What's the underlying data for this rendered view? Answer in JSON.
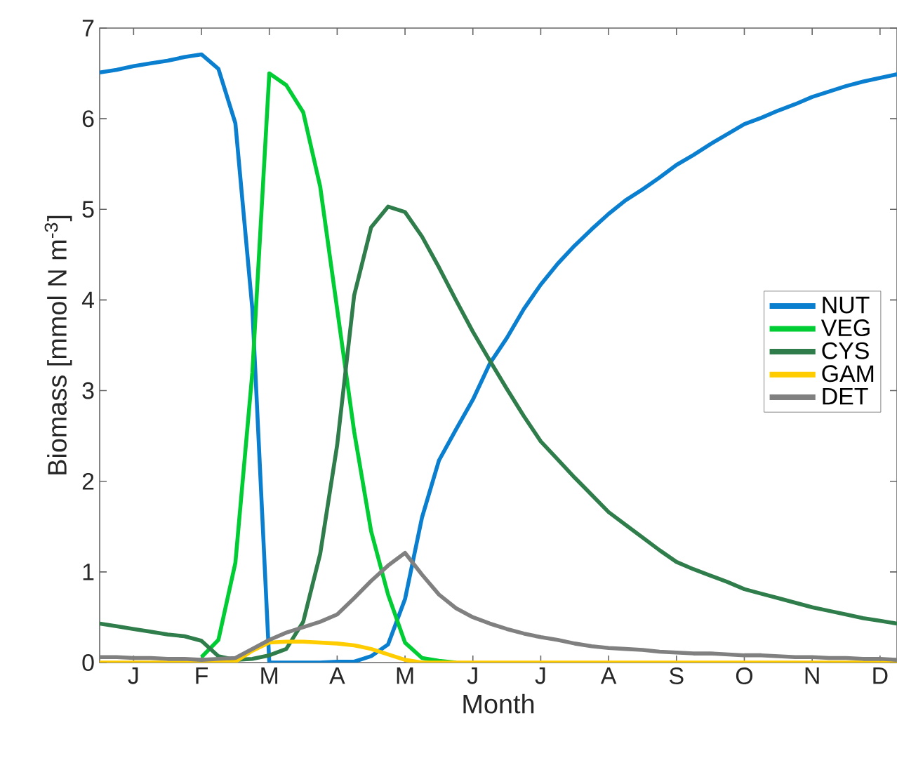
{
  "chart_data": {
    "type": "line",
    "xlabel": "Month",
    "ylabel": "Biomass [mmol N m$^{-3}$]",
    "categories": [
      null,
      null,
      "J",
      null,
      null,
      null,
      "F",
      null,
      null,
      null,
      "M",
      null,
      null,
      null,
      "A",
      null,
      null,
      null,
      "M",
      null,
      null,
      null,
      "J",
      null,
      null,
      null,
      "J",
      null,
      null,
      null,
      "A",
      null,
      null,
      null,
      "S",
      null,
      null,
      null,
      "O",
      null,
      null,
      null,
      "N",
      null,
      null,
      null,
      "D",
      null
    ],
    "ylim": [
      0,
      7
    ],
    "yticks": [
      0,
      1,
      2,
      3,
      4,
      5,
      6,
      7
    ],
    "legend": "right",
    "grid": false,
    "series": [
      {
        "name": "NUT",
        "color": "#0a7fd0",
        "values": [
          6.51,
          6.54,
          6.58,
          6.61,
          6.64,
          6.68,
          6.71,
          6.55,
          5.95,
          3.9,
          0,
          0,
          0,
          0,
          0.01,
          0.01,
          0.07,
          0.2,
          0.7,
          1.6,
          2.23,
          2.57,
          2.9,
          3.3,
          3.58,
          3.9,
          4.17,
          4.4,
          4.6,
          4.78,
          4.95,
          5.1,
          5.22,
          5.35,
          5.49,
          5.6,
          5.72,
          5.83,
          5.94,
          6.01,
          6.09,
          6.16,
          6.24,
          6.3,
          6.36,
          6.41,
          6.45,
          6.49
        ]
      },
      {
        "name": "VEG",
        "color": "#00cc33",
        "values": [
          null,
          null,
          null,
          null,
          null,
          null,
          0.06,
          0.25,
          1.1,
          3.2,
          6.5,
          6.37,
          6.07,
          5.25,
          3.9,
          2.55,
          1.45,
          0.75,
          0.22,
          0.05,
          0.02,
          0,
          null,
          null,
          null,
          null,
          null,
          null,
          null,
          null,
          null,
          null,
          null,
          null,
          null,
          null,
          null,
          null,
          null,
          null,
          null,
          null,
          null,
          null,
          null,
          null,
          null,
          null
        ]
      },
      {
        "name": "CYS",
        "color": "#2e7d4a",
        "values": [
          0.43,
          0.4,
          0.37,
          0.34,
          0.31,
          0.29,
          0.24,
          0.07,
          0.03,
          0.04,
          0.08,
          0.15,
          0.45,
          1.2,
          2.4,
          4.05,
          4.8,
          5.03,
          4.97,
          4.7,
          4.36,
          4.0,
          3.65,
          3.33,
          3.02,
          2.72,
          2.44,
          2.24,
          2.04,
          1.85,
          1.66,
          1.52,
          1.38,
          1.24,
          1.11,
          1.03,
          0.96,
          0.89,
          0.81,
          0.76,
          0.71,
          0.66,
          0.61,
          0.57,
          0.53,
          0.49,
          0.46,
          0.43
        ]
      },
      {
        "name": "GAM",
        "color": "#ffcc00",
        "values": [
          0,
          0,
          0,
          0,
          0,
          0,
          0,
          0,
          0.01,
          0.13,
          0.22,
          0.23,
          0.23,
          0.22,
          0.21,
          0.19,
          0.15,
          0.09,
          0.03,
          0,
          0,
          0,
          0,
          0,
          0,
          0,
          0,
          0,
          0,
          0,
          0,
          0,
          0,
          0,
          0,
          0,
          0,
          0,
          0,
          0,
          0,
          0,
          0,
          0,
          0,
          0,
          0,
          0
        ]
      },
      {
        "name": "DET",
        "color": "#808080",
        "values": [
          0.06,
          0.06,
          0.05,
          0.05,
          0.04,
          0.04,
          0.03,
          0.04,
          0.05,
          0.15,
          0.25,
          0.33,
          0.39,
          0.45,
          0.53,
          0.71,
          0.9,
          1.07,
          1.21,
          0.97,
          0.75,
          0.6,
          0.5,
          0.43,
          0.37,
          0.32,
          0.28,
          0.25,
          0.21,
          0.18,
          0.16,
          0.15,
          0.14,
          0.12,
          0.11,
          0.1,
          0.1,
          0.09,
          0.08,
          0.08,
          0.07,
          0.06,
          0.06,
          0.05,
          0.05,
          0.04,
          0.04,
          0.03
        ]
      }
    ]
  }
}
